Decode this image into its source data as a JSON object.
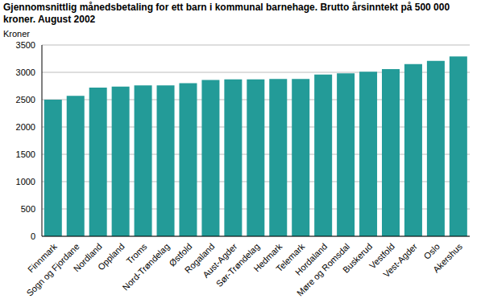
{
  "chart_data": {
    "type": "bar",
    "title": "Gjennomsnittlig månedsbetaling for ett barn i kommunal barnehage. Brutto årsinntekt på 500 000 kroner. August 2002",
    "y_label": "Kroner",
    "categories": [
      "Finnmark",
      "Sogn og Fjordane",
      "Nordland",
      "Oppland",
      "Troms",
      "Nord-Trøndelag",
      "Østfold",
      "Rogaland",
      "Aust-Agder",
      "Sør-Trøndelag",
      "Hedmark",
      "Telemark",
      "Hordaland",
      "Møre og Romsdal",
      "Buskerud",
      "Vestfold",
      "Vest-Agder",
      "Oslo",
      "Akershus"
    ],
    "values": [
      2500,
      2570,
      2720,
      2740,
      2760,
      2760,
      2800,
      2860,
      2870,
      2870,
      2880,
      2880,
      2960,
      2980,
      3010,
      3060,
      3150,
      3210,
      3290
    ],
    "color": "#239b98",
    "ylim": [
      0,
      3500
    ],
    "yticks": [
      0,
      500,
      1000,
      1500,
      2000,
      2500,
      3000,
      3500
    ],
    "grid": true
  }
}
